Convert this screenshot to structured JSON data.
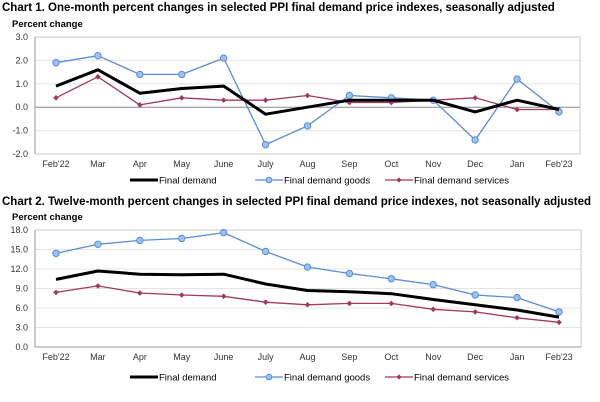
{
  "chart_data": [
    {
      "type": "line",
      "title": "Chart 1. One-month percent changes in selected PPI final demand price indexes, seasonally adjusted",
      "ylabel": "Percent change",
      "xlabel": "",
      "ylim": [
        -2.0,
        3.0
      ],
      "yticks": [
        "3.0",
        "2.0",
        "1.0",
        "0.0",
        "-1.0",
        "-2.0"
      ],
      "ytick_values": [
        3,
        2,
        1,
        0,
        -1,
        -2
      ],
      "grid": true,
      "legend": "bottom",
      "categories": [
        "Feb'22",
        "Mar",
        "Apr",
        "May",
        "June",
        "July",
        "Aug",
        "Sep",
        "Oct",
        "Nov",
        "Dec",
        "Jan",
        "Feb'23"
      ],
      "series": [
        {
          "name": "Final demand",
          "color": "#000000",
          "marker": "none",
          "values": [
            0.9,
            1.6,
            0.6,
            0.8,
            0.9,
            -0.3,
            0.0,
            0.3,
            0.3,
            0.3,
            -0.2,
            0.3,
            -0.1
          ]
        },
        {
          "name": "Final demand goods",
          "color": "#5b8bd6",
          "marker": "circle",
          "values": [
            1.9,
            2.2,
            1.4,
            1.4,
            2.1,
            -1.6,
            -0.8,
            0.5,
            0.4,
            0.3,
            -1.4,
            1.2,
            -0.2
          ]
        },
        {
          "name": "Final demand services",
          "color": "#a0395f",
          "marker": "diamond",
          "values": [
            0.4,
            1.3,
            0.1,
            0.4,
            0.3,
            0.3,
            0.5,
            0.2,
            0.2,
            0.3,
            0.4,
            -0.1,
            -0.1
          ]
        }
      ]
    },
    {
      "type": "line",
      "title": "Chart 2. Twelve-month percent changes in selected PPI final demand price indexes, not seasonally adjusted",
      "ylabel": "Percent change",
      "xlabel": "",
      "ylim": [
        0.0,
        18.0
      ],
      "yticks": [
        "18.0",
        "15.0",
        "12.0",
        "9.0",
        "6.0",
        "3.0",
        "0.0"
      ],
      "ytick_values": [
        18,
        15,
        12,
        9,
        6,
        3,
        0
      ],
      "grid": true,
      "legend": "bottom",
      "categories": [
        "Feb'22",
        "Mar",
        "Apr",
        "May",
        "June",
        "July",
        "Aug",
        "Sep",
        "Oct",
        "Nov",
        "Dec",
        "Jan",
        "Feb'23"
      ],
      "series": [
        {
          "name": "Final demand",
          "color": "#000000",
          "marker": "none",
          "values": [
            10.4,
            11.7,
            11.2,
            11.1,
            11.2,
            9.7,
            8.7,
            8.5,
            8.2,
            7.3,
            6.5,
            5.7,
            4.6
          ]
        },
        {
          "name": "Final demand goods",
          "color": "#5b8bd6",
          "marker": "circle",
          "values": [
            14.4,
            15.8,
            16.4,
            16.7,
            17.6,
            14.7,
            12.3,
            11.3,
            10.5,
            9.6,
            8.0,
            7.6,
            5.4
          ]
        },
        {
          "name": "Final demand services",
          "color": "#a0395f",
          "marker": "diamond",
          "values": [
            8.4,
            9.4,
            8.3,
            8.0,
            7.8,
            6.9,
            6.5,
            6.7,
            6.7,
            5.8,
            5.4,
            4.5,
            3.8
          ]
        }
      ]
    }
  ]
}
